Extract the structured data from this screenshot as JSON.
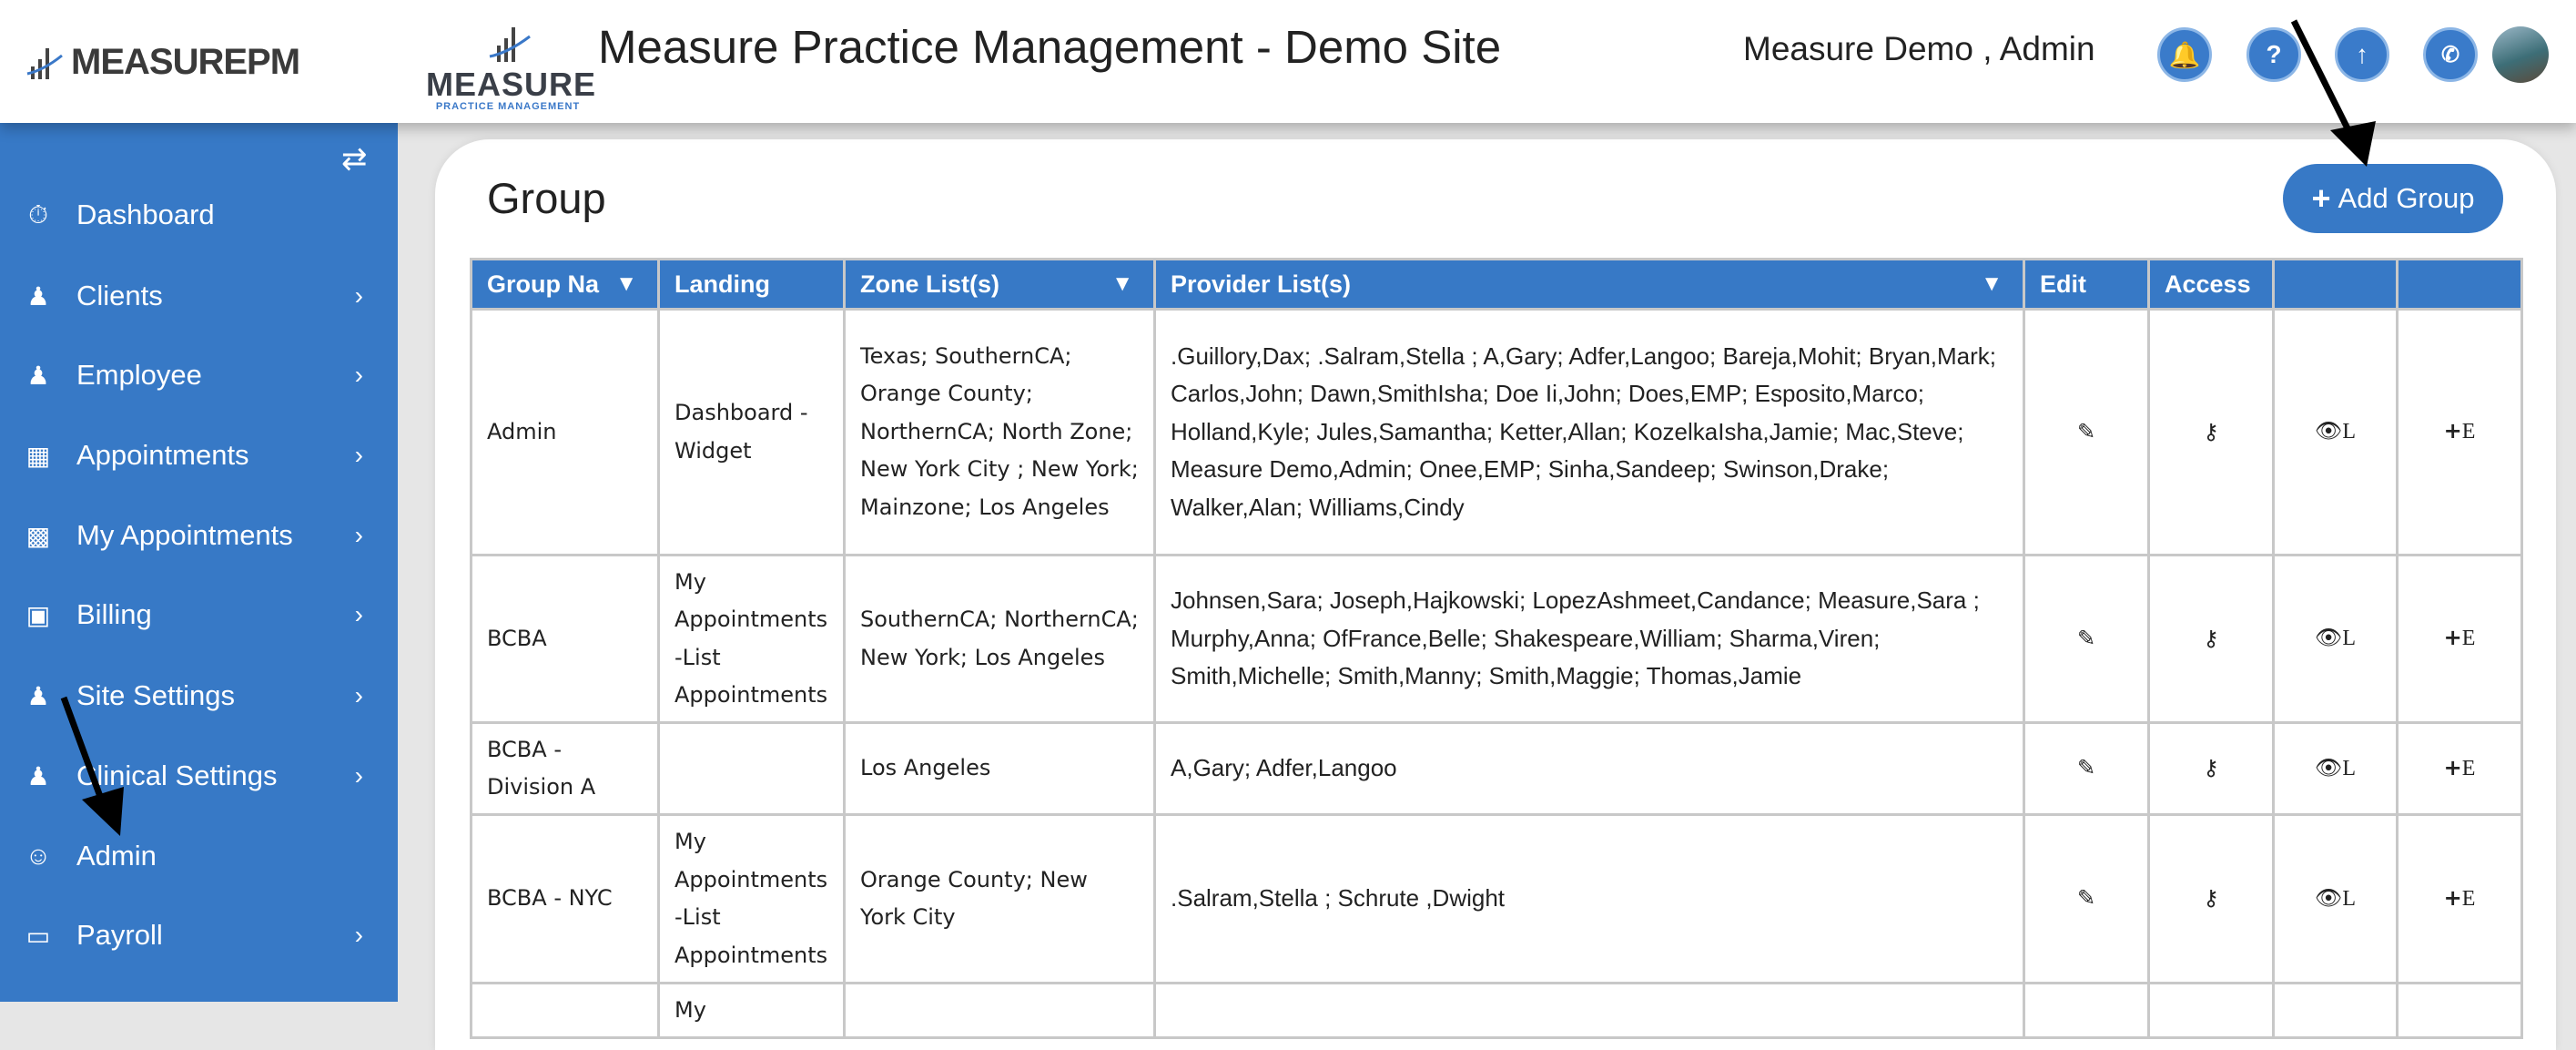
{
  "header": {
    "logo_text": "MEASUREPM",
    "logo2_text": "MEASURE",
    "logo2_sub": "PRACTICE MANAGEMENT",
    "title": "Measure Practice Management - Demo Site",
    "user": "Measure Demo , Admin",
    "icons": [
      "bell-icon",
      "help-icon",
      "upload-icon",
      "phone-icon"
    ]
  },
  "sidebar": {
    "items": [
      {
        "label": "Dashboard",
        "icon": "dashboard-icon",
        "chevron": false
      },
      {
        "label": "Clients",
        "icon": "user-icon",
        "chevron": true
      },
      {
        "label": "Employee",
        "icon": "users-icon",
        "chevron": true
      },
      {
        "label": "Appointments",
        "icon": "calendar-icon",
        "chevron": true
      },
      {
        "label": "My Appointments",
        "icon": "building-icon",
        "chevron": true
      },
      {
        "label": "Billing",
        "icon": "money-icon",
        "chevron": true
      },
      {
        "label": "Site Settings",
        "icon": "user-icon",
        "chevron": true
      },
      {
        "label": "Clinical Settings",
        "icon": "user-icon",
        "chevron": true
      },
      {
        "label": "Admin",
        "icon": "user-circle-icon",
        "chevron": false
      },
      {
        "label": "Payroll",
        "icon": "credit-card-icon",
        "chevron": true
      }
    ]
  },
  "main": {
    "title": "Group",
    "add_button": "Add Group",
    "columns": [
      "Group Na",
      "Landing",
      "Zone List(s)",
      "Provider List(s)",
      "Edit",
      "Access",
      "",
      ""
    ],
    "action_labels": {
      "view": "L",
      "extra": "E"
    },
    "rows": [
      {
        "group": "Admin",
        "landing": "Dashboard - Widget",
        "zones": "Texas; SouthernCA; Orange County; NorthernCA; North Zone; New York City ; New York; Mainzone; Los Angeles",
        "providers": ".Guillory,Dax; .Salram,Stella ; A,Gary; Adfer,Langoo; Bareja,Mohit; Bryan,Mark; Carlos,John; Dawn,SmithIsha; Doe Ii,John; Does,EMP; Esposito,Marco; Holland,Kyle; Jules,Samantha; Ketter,Allan; KozelkaIsha,Jamie; Mac,Steve; Measure Demo,Admin; Onee,EMP; Sinha,Sandeep; Swinson,Drake; Walker,Alan; Williams,Cindy"
      },
      {
        "group": "BCBA",
        "landing": "My Appointments -List Appointments",
        "zones": "SouthernCA; NorthernCA; New York; Los Angeles",
        "providers": "Johnsen,Sara; Joseph,Hajkowski; LopezAshmeet,Candance; Measure,Sara ; Murphy,Anna; OfFrance,Belle; Shakespeare,William; Sharma,Viren; Smith,Michelle; Smith,Manny; Smith,Maggie; Thomas,Jamie"
      },
      {
        "group": "BCBA - Division A",
        "landing": "",
        "zones": "Los Angeles",
        "providers": "A,Gary; Adfer,Langoo"
      },
      {
        "group": "BCBA - NYC",
        "landing": "My Appointments -List Appointments",
        "zones": "Orange County; New York City",
        "providers": ".Salram,Stella ; Schrute ,Dwight"
      },
      {
        "group": "",
        "landing": "My",
        "zones": "",
        "providers": ""
      }
    ]
  },
  "colors": {
    "primary": "#3779c6",
    "border": "#c8c8c8"
  }
}
